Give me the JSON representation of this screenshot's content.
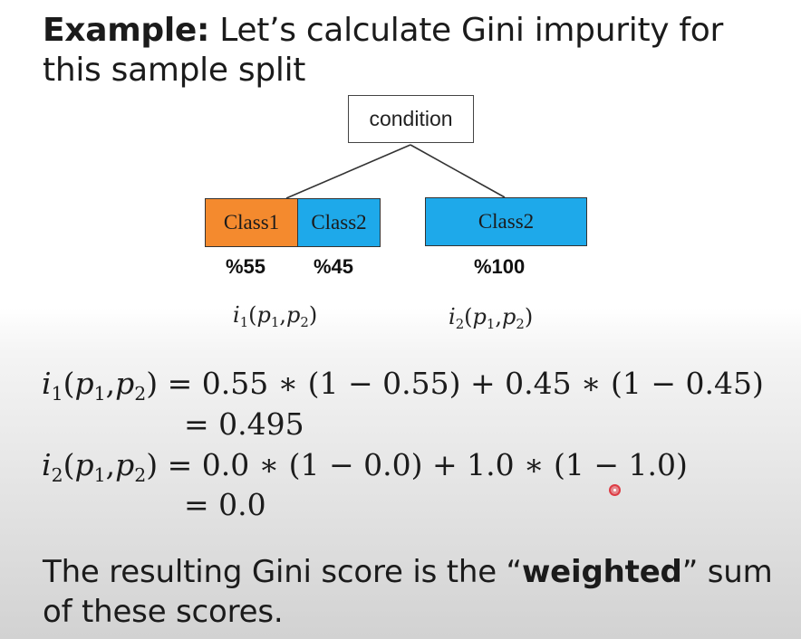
{
  "title": {
    "bold": "Example:",
    "rest": " Let’s calculate Gini impurity for this sample split"
  },
  "tree": {
    "root": "condition",
    "left_leaf": {
      "class1": "Class1",
      "class2": "Class2",
      "pct1": "%55",
      "pct2": "%45"
    },
    "right_leaf": {
      "class": "Class2",
      "pct": "%100"
    },
    "left_impurity": {
      "i": "i",
      "i_sub": "1",
      "open": "(",
      "p": "p",
      "p1_sub": "1",
      "comma": ",",
      "p2_sub": "2",
      "close": ")"
    },
    "right_impurity": {
      "i": "i",
      "i_sub": "2",
      "open": "(",
      "p": "p",
      "p1_sub": "1",
      "comma": ",",
      "p2_sub": "2",
      "close": ")"
    }
  },
  "equations": {
    "line1_lhs_i": "i",
    "line1_lhs_i_sub": "1",
    "line1_rhs": " = 0.55 ∗ (1 − 0.55) + 0.45 ∗ (1 − 0.45)",
    "line2": "= 0.495",
    "line3_lhs_i": "i",
    "line3_lhs_i_sub": "2",
    "line3_rhs": " = 0.0 ∗ (1 − 0.0) + 1.0 ∗ (1 − 1.0)",
    "line4": "= 0.0",
    "args_open": "(",
    "args_p": "p",
    "args_p1_sub": "1",
    "args_comma": ",",
    "args_p2_sub": "2",
    "args_close": ")"
  },
  "footer": {
    "pre": "The resulting Gini score is the “",
    "bold": "weighted",
    "post": "” sum of these scores."
  },
  "colors": {
    "class1": "#f48a2e",
    "class2": "#1ea9ea"
  }
}
